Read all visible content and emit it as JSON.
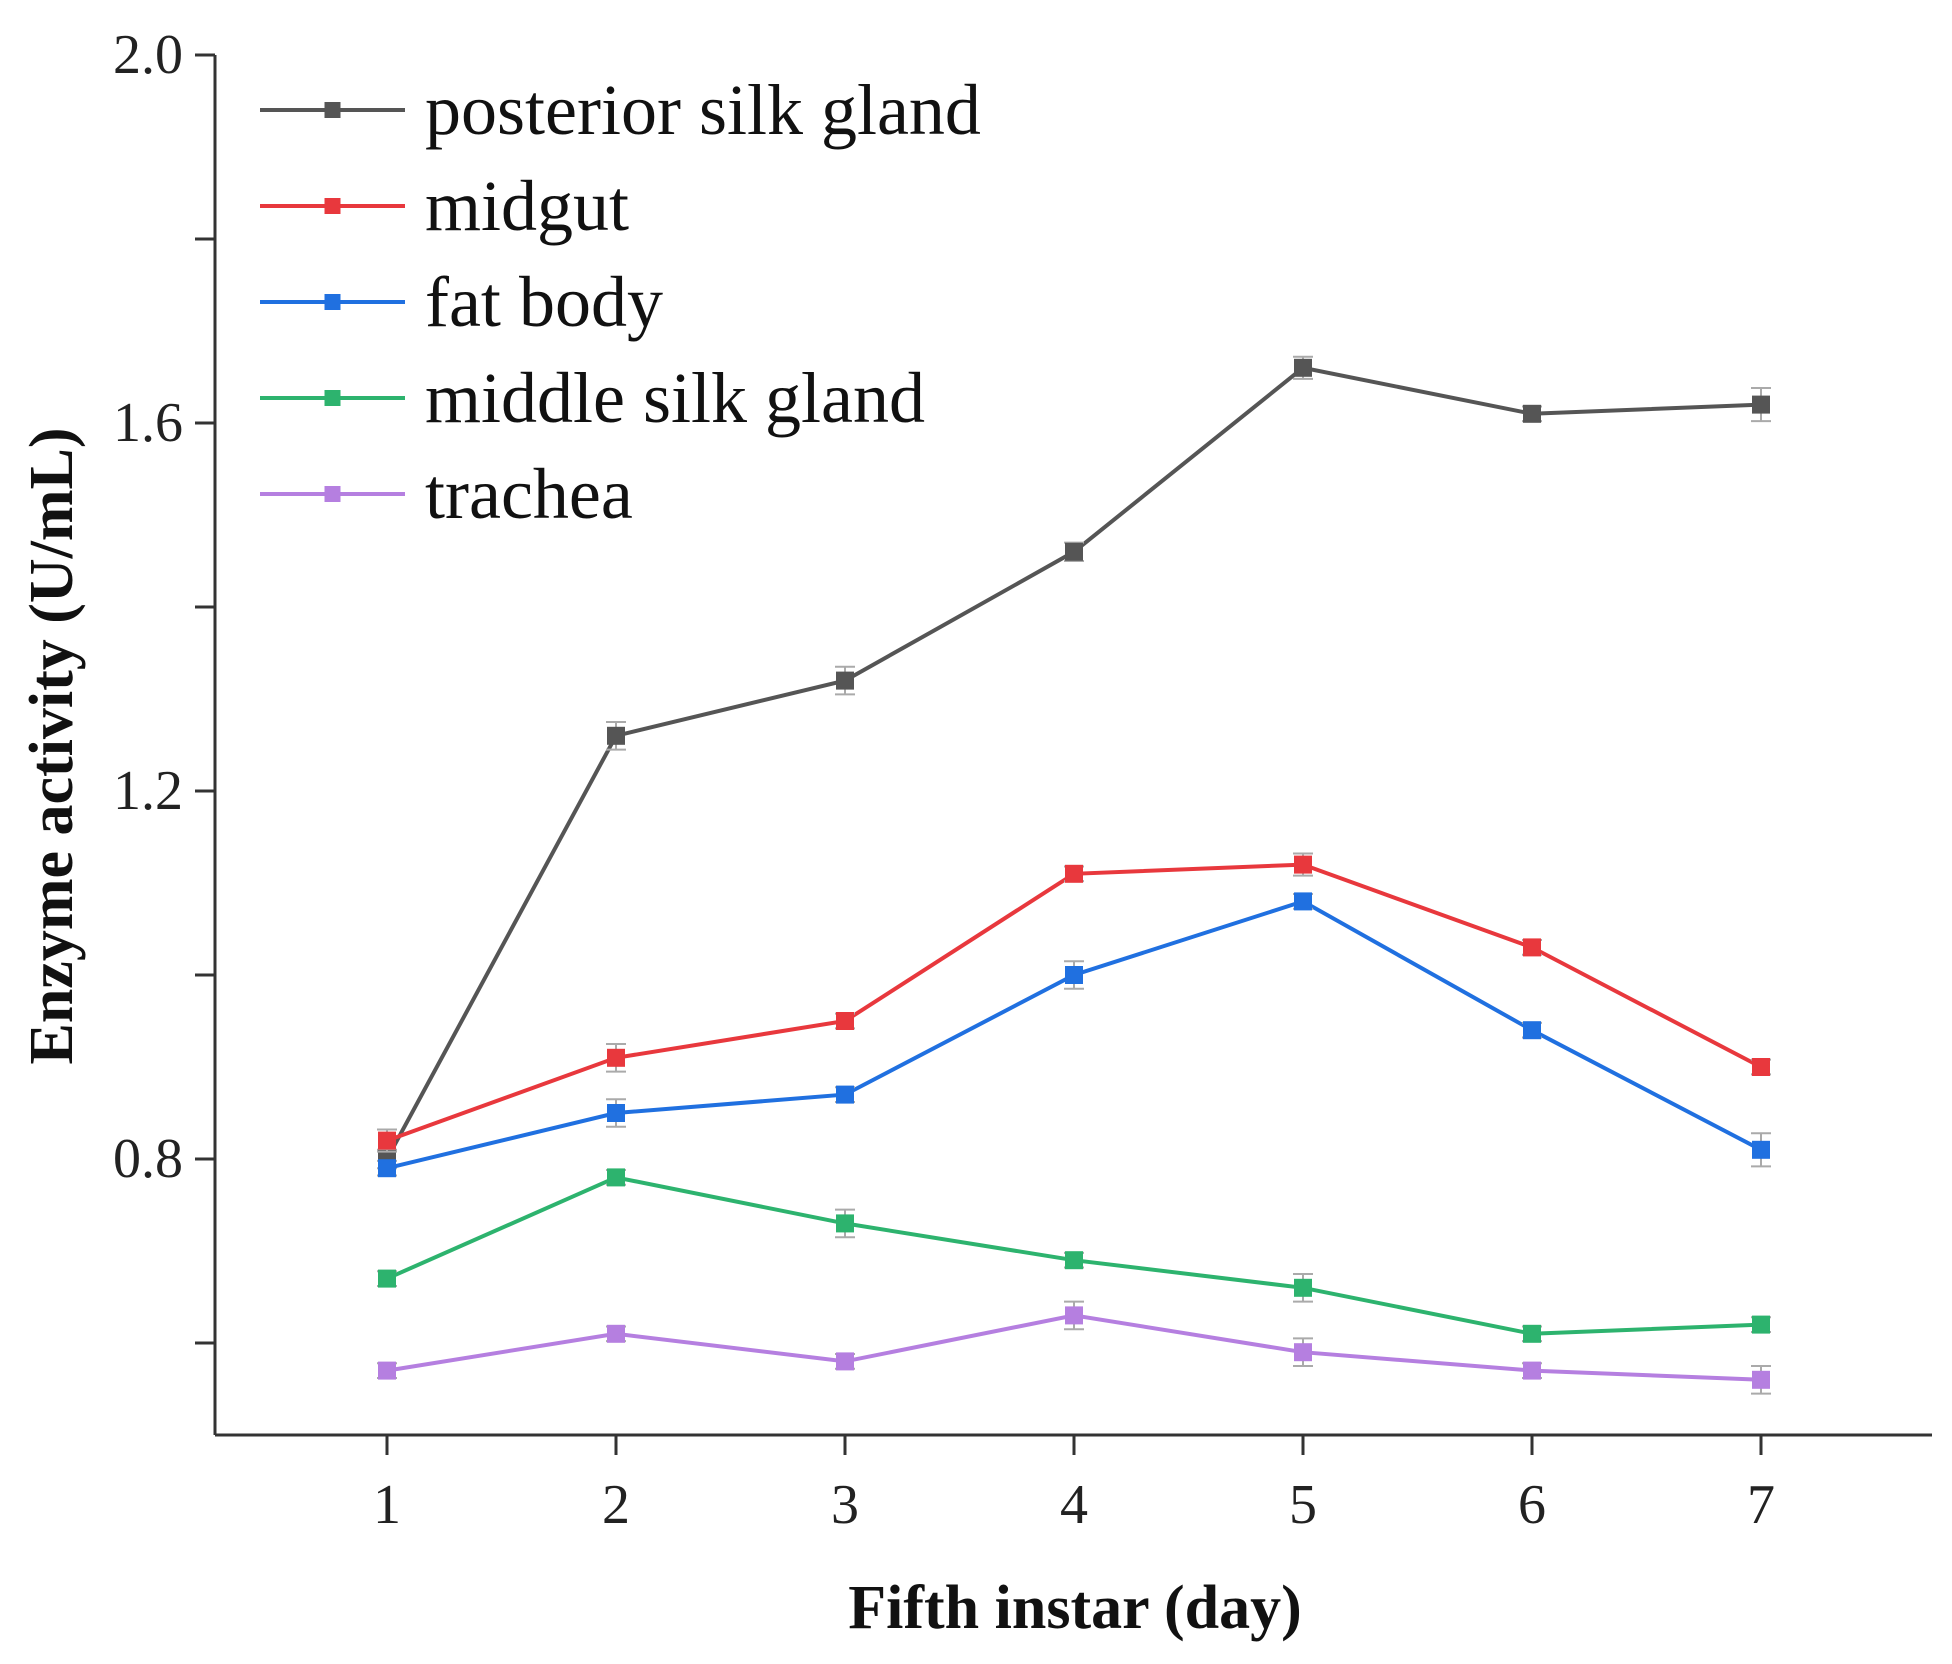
{
  "chart_data": {
    "type": "line",
    "title": "",
    "xlabel": "Fifth instar (day)",
    "ylabel": "Enzyme activity (U/mL)",
    "x": [
      1,
      2,
      3,
      4,
      5,
      6,
      7
    ],
    "x_tick_labels": [
      "1",
      "2",
      "3",
      "4",
      "5",
      "6",
      "7"
    ],
    "ylim": [
      0.5,
      2.0
    ],
    "y_ticks": [
      0.8,
      1.2,
      1.6,
      2.0
    ],
    "y_tick_labels": [
      "0.8",
      "1.2",
      "1.6",
      "2.0"
    ],
    "legend_position": "top-left",
    "grid": false,
    "series": [
      {
        "name": "posterior silk gland",
        "color": "#555555",
        "values": [
          0.8,
          1.26,
          1.32,
          1.46,
          1.66,
          1.61,
          1.62
        ],
        "errors": [
          0.01,
          0.015,
          0.015,
          0.01,
          0.012,
          0.008,
          0.018
        ]
      },
      {
        "name": "midgut",
        "color": "#e8383d",
        "values": [
          0.82,
          0.91,
          0.95,
          1.11,
          1.12,
          1.03,
          0.9
        ],
        "errors": [
          0.012,
          0.015,
          0.008,
          0.008,
          0.012,
          0.008,
          0.008
        ]
      },
      {
        "name": "fat body",
        "color": "#2070e0",
        "values": [
          0.79,
          0.85,
          0.87,
          1.0,
          1.08,
          0.94,
          0.81
        ],
        "errors": [
          0.008,
          0.015,
          0.008,
          0.015,
          0.008,
          0.008,
          0.018
        ]
      },
      {
        "name": "middle silk gland",
        "color": "#2db36e",
        "values": [
          0.67,
          0.78,
          0.73,
          0.69,
          0.66,
          0.61,
          0.62
        ],
        "errors": [
          0.008,
          0.008,
          0.015,
          0.008,
          0.015,
          0.008,
          0.008
        ]
      },
      {
        "name": "trachea",
        "color": "#b57fe0",
        "values": [
          0.57,
          0.61,
          0.58,
          0.63,
          0.59,
          0.57,
          0.56
        ],
        "errors": [
          0.008,
          0.008,
          0.008,
          0.015,
          0.015,
          0.008,
          0.015
        ]
      }
    ]
  }
}
